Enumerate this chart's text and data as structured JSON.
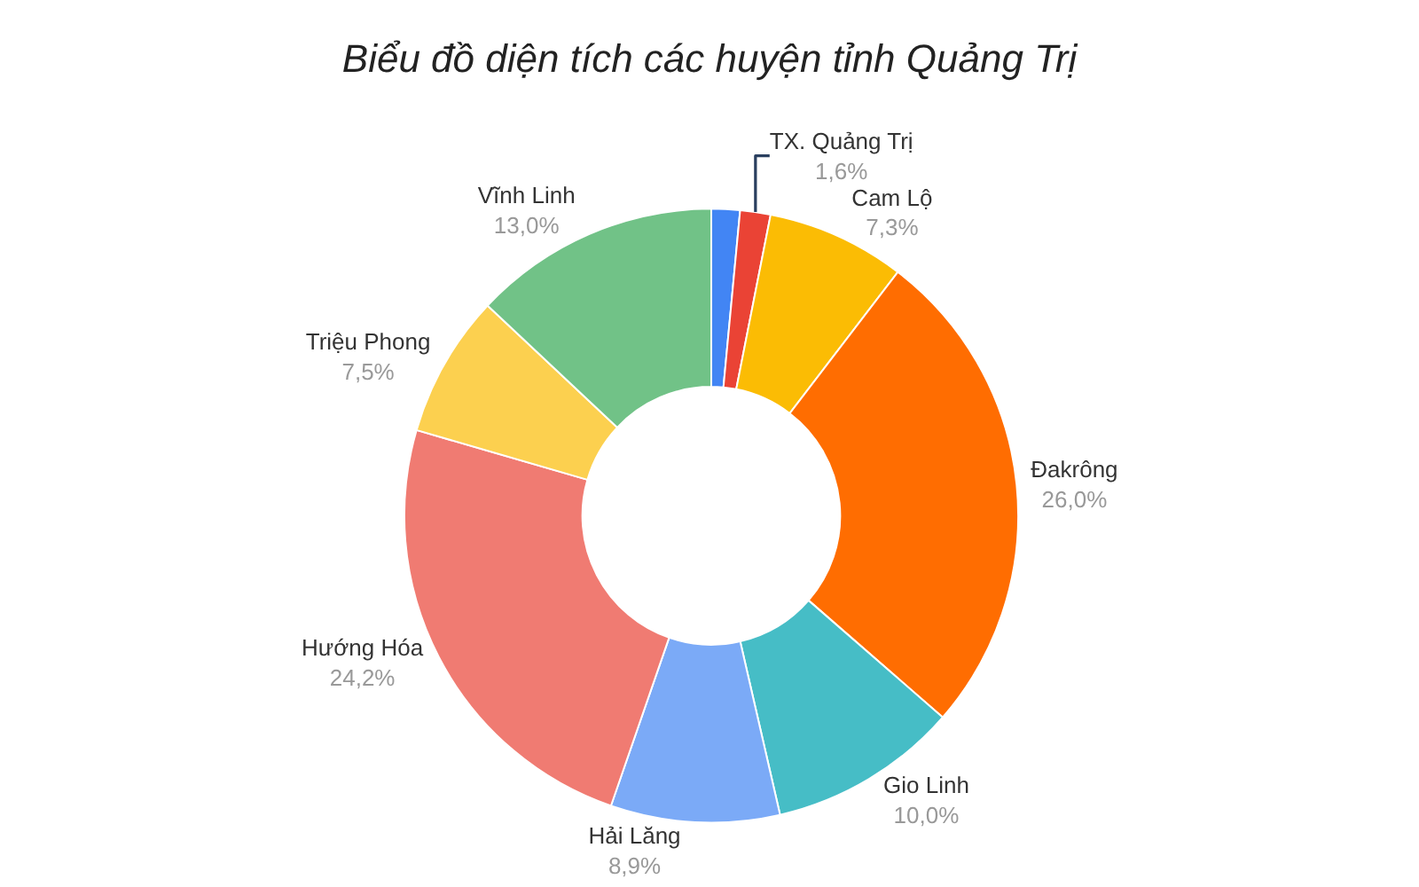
{
  "chart_data": {
    "type": "donut",
    "title": "Biểu đồ diện tích các huyện tỉnh Quảng Trị",
    "categories": [
      null,
      "TX. Quảng Trị",
      "Cam Lộ",
      "Đakrông",
      "Gio Linh",
      "Hải Lăng",
      "Hướng Hóa",
      "Triệu Phong",
      "Vĩnh Linh"
    ],
    "values": [
      1.5,
      1.6,
      7.3,
      26.0,
      10.0,
      8.9,
      24.2,
      7.5,
      13.0
    ],
    "value_labels": [
      null,
      "1,6%",
      "7,3%",
      "26,0%",
      "10,0%",
      "8,9%",
      "24,2%",
      "7,5%",
      "13,0%"
    ],
    "colors": [
      "#4285f4",
      "#ea4335",
      "#fbbc04",
      "#ff6d01",
      "#46bdc6",
      "#7baaf7",
      "#f07b72",
      "#fcd04f",
      "#71c287"
    ],
    "legend": false
  }
}
